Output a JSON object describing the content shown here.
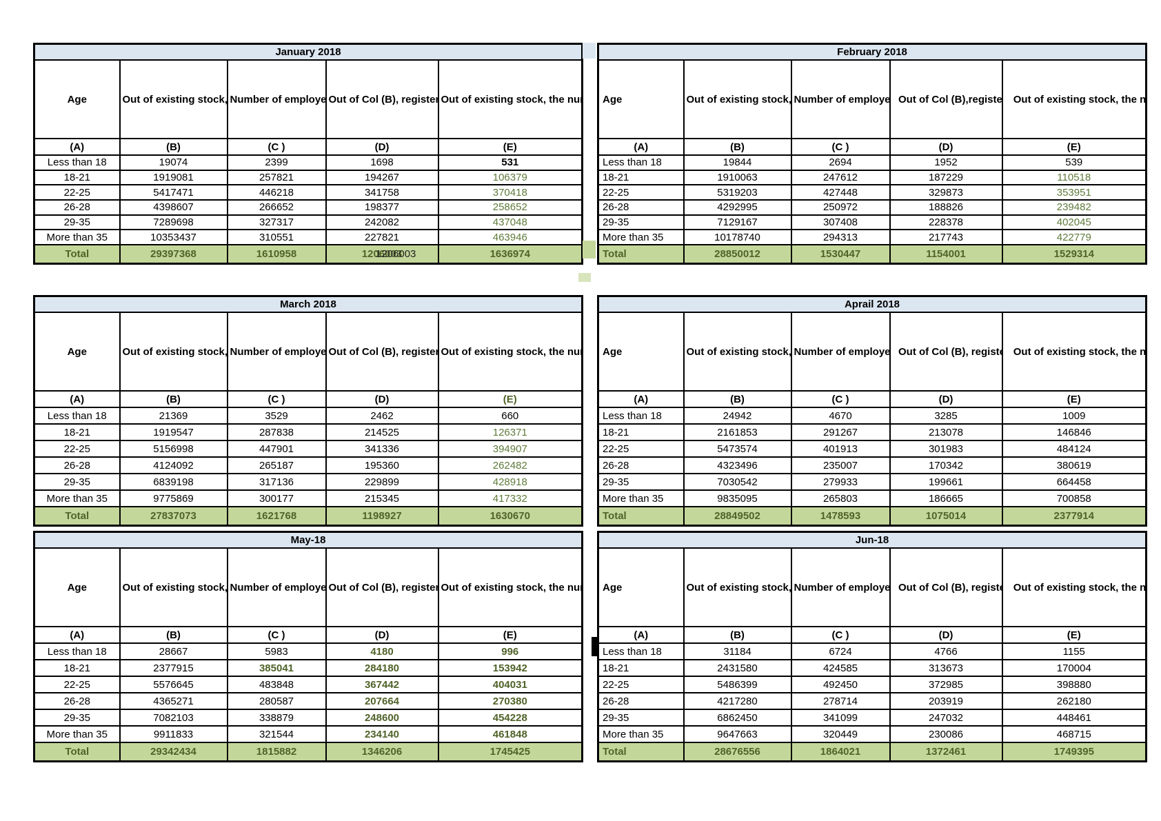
{
  "colors": {
    "title_bg": "#DCE6F1",
    "total_bg": "#C4D79B",
    "value_green": "#5E7A3A",
    "total_green": "#4F6228",
    "border": "#000000"
  },
  "column_letters": [
    "(A)",
    "(B)",
    "(C )",
    "(D)",
    "(E)"
  ],
  "months": [
    {
      "title": "January 2018",
      "headers": {
        "a": "Age",
        "b": "Out of existing stock, the number of employees who paid contribution during the month",
        "c": "Number of employees registered during the month",
        "d": "Out of Col (B), registerd employees as in Col ( C), who paid the contribution during the month",
        "e": "Out of existing stock, the number of  employees  who have ceased paying contribution during the month"
      },
      "e_letter_green": false,
      "rows": [
        {
          "age": "Less than 18",
          "b": "19074",
          "c": "2399",
          "d": "1698",
          "e": "531",
          "cls": {
            "e": "bb"
          }
        },
        {
          "age": "18-21",
          "b": "1919081",
          "c": "257821",
          "d": "194267",
          "e": "106379",
          "cls": {
            "e": "grn"
          }
        },
        {
          "age": "22-25",
          "b": "5417471",
          "c": "446218",
          "d": "341758",
          "e": "370418",
          "cls": {
            "e": "grn"
          }
        },
        {
          "age": "26-28",
          "b": "4398607",
          "c": "266652",
          "d": "198377",
          "e": "258652",
          "cls": {
            "e": "grn"
          }
        },
        {
          "age": "29-35",
          "b": "7289698",
          "c": "327317",
          "d": "242082",
          "e": "437048",
          "cls": {
            "e": "grn"
          }
        },
        {
          "age": "More than 35",
          "b": "10353437",
          "c": "310551",
          "d": "227821",
          "e": "463946",
          "cls": {
            "e": "grn"
          }
        }
      ],
      "total": {
        "label": "Total",
        "b": "29397368",
        "c": "1610958",
        "d": "1206003",
        "e": "1636974"
      },
      "overlay": "1206003"
    },
    {
      "title": "February 2018",
      "headers": {
        "a": "Age",
        "b": "Out of existing stock, the number of employees who paid contribution during the month",
        "c": "Number of employees registered during the month",
        "d": "Out of Col (B),registered employees as in Col ( C), who paid the contribution during the month",
        "e": "Out of existing stock, the number of employees who have ceased paying contribution during the month"
      },
      "e_letter_green": false,
      "rows": [
        {
          "age": "Less than 18",
          "b": "19844",
          "c": "2694",
          "d": "1952",
          "e": "539",
          "cls": {}
        },
        {
          "age": "18-21",
          "b": "1910063",
          "c": "247612",
          "d": "187229",
          "e": "110518",
          "cls": {
            "e": "grn"
          }
        },
        {
          "age": "22-25",
          "b": "5319203",
          "c": "427448",
          "d": "329873",
          "e": "353951",
          "cls": {
            "e": "grn"
          }
        },
        {
          "age": "26-28",
          "b": "4292995",
          "c": "250972",
          "d": "188826",
          "e": "239482",
          "cls": {
            "e": "grn"
          }
        },
        {
          "age": "29-35",
          "b": "7129167",
          "c": "307408",
          "d": "228378",
          "e": "402045",
          "cls": {
            "e": "grn"
          }
        },
        {
          "age": "More than 35",
          "b": "10178740",
          "c": "294313",
          "d": "217743",
          "e": "422779",
          "cls": {
            "e": "grn"
          }
        }
      ],
      "total": {
        "label": "Total",
        "b": "28850012",
        "c": "1530447",
        "d": "1154001",
        "e": "1529314"
      }
    },
    {
      "title": "March 2018",
      "headers": {
        "a": "Age",
        "b": "Out of existing stock, the number of employees who paid contribution during the month",
        "c": "Number of employees registered during the month",
        "d": "Out of Col (B), registerd employees as in Col ( C), who paid the contribution during the month",
        "e": "Out of existing stock, the number of  employees  who have ceased paying contribution during the month"
      },
      "e_letter_green": true,
      "rows": [
        {
          "age": "Less than 18",
          "b": "21369",
          "c": "3529",
          "d": "2462",
          "e": "660",
          "cls": {}
        },
        {
          "age": "18-21",
          "b": "1919547",
          "c": "287838",
          "d": "214525",
          "e": "126371",
          "cls": {
            "e": "grn"
          }
        },
        {
          "age": "22-25",
          "b": "5156998",
          "c": "447901",
          "d": "341336",
          "e": "394907",
          "cls": {
            "e": "grn"
          }
        },
        {
          "age": "26-28",
          "b": "4124092",
          "c": "265187",
          "d": "195360",
          "e": "262482",
          "cls": {
            "e": "grn"
          }
        },
        {
          "age": "29-35",
          "b": "6839198",
          "c": "317136",
          "d": "229899",
          "e": "428918",
          "cls": {
            "e": "grn"
          }
        },
        {
          "age": "More than 35",
          "b": "9775869",
          "c": "300177",
          "d": "215345",
          "e": "417332",
          "cls": {
            "e": "grn"
          }
        }
      ],
      "total": {
        "label": "Total",
        "b": "27837073",
        "c": "1621768",
        "d": "1198927",
        "e": "1630670"
      }
    },
    {
      "title": "Aprail 2018",
      "headers": {
        "a": "Age",
        "b": "Out of existing stock, the number of employees who paid contribution during the month",
        "c": "Number of employees registered during the month",
        "d": "Out of Col (B), registerd employees as in Col ( C), who paid the contribution during the month",
        "e": "Out of existing stock, the number of employees who have ceased paying contribution during the month"
      },
      "e_letter_green": false,
      "rows": [
        {
          "age": "Less than 18",
          "b": "24942",
          "c": "4670",
          "d": "3285",
          "e": "1009",
          "cls": {}
        },
        {
          "age": "18-21",
          "b": "2161853",
          "c": "291267",
          "d": "213078",
          "e": "146846",
          "cls": {}
        },
        {
          "age": "22-25",
          "b": "5473574",
          "c": "401913",
          "d": "301983",
          "e": "484124",
          "cls": {}
        },
        {
          "age": "26-28",
          "b": "4323496",
          "c": "235007",
          "d": "170342",
          "e": "380619",
          "cls": {}
        },
        {
          "age": "29-35",
          "b": "7030542",
          "c": "279933",
          "d": "199661",
          "e": "664458",
          "cls": {}
        },
        {
          "age": "More than 35",
          "b": "9835095",
          "c": "265803",
          "d": "186665",
          "e": "700858",
          "cls": {}
        }
      ],
      "total": {
        "label": "Total",
        "b": "28849502",
        "c": "1478593",
        "d": "1075014",
        "e": "2377914"
      }
    },
    {
      "title": "May-18",
      "headers": {
        "a": "Age",
        "b": "Out of existing stock, the number of employees who paid contribution during the month",
        "c": "Number of employees registered during the month",
        "d": "Out of Col (B), registerd employees as in Col ( C), who paid the contribution during the month",
        "e": "Out of existing stock, the number of  employees  who have ceased paying contribution during the month"
      },
      "e_letter_green": false,
      "rows": [
        {
          "age": "Less than 18",
          "b": "28667",
          "c": "5983",
          "d": "4180",
          "e": "996",
          "cls": {
            "d": "gb",
            "e": "gb"
          }
        },
        {
          "age": "18-21",
          "b": "2377915",
          "c": "385041",
          "d": "284180",
          "e": "153942",
          "cls": {
            "c": "gb",
            "d": "gb",
            "e": "gb"
          }
        },
        {
          "age": "22-25",
          "b": "5576645",
          "c": "483848",
          "d": "367442",
          "e": "404031",
          "cls": {
            "d": "gb",
            "e": "gb"
          }
        },
        {
          "age": "26-28",
          "b": "4365271",
          "c": "280587",
          "d": "207664",
          "e": "270380",
          "cls": {
            "d": "gb",
            "e": "gb"
          }
        },
        {
          "age": "29-35",
          "b": "7082103",
          "c": "338879",
          "d": "248600",
          "e": "454228",
          "cls": {
            "d": "gb",
            "e": "gb"
          }
        },
        {
          "age": "More than 35",
          "b": "9911833",
          "c": "321544",
          "d": "234140",
          "e": "461848",
          "cls": {
            "d": "gb",
            "e": "gb"
          }
        }
      ],
      "total": {
        "label": "Total",
        "b": "29342434",
        "c": "1815882",
        "d": "1346206",
        "e": "1745425"
      }
    },
    {
      "title": "Jun-18",
      "headers": {
        "a": "Age",
        "b": "Out of existing stock, the number of employees who paid contribution during the month",
        "c": "Number of employees registered during the month",
        "d": "Out of Col (B), registerd employees as in Col ( C), who paid the contribution during the month",
        "e": "Out of existing stock, the number of employees who have ceased paying contribution during the month"
      },
      "e_letter_green": false,
      "rows": [
        {
          "age": "Less than 18",
          "b": "31184",
          "c": "6724",
          "d": "4766",
          "e": "1155",
          "cls": {}
        },
        {
          "age": "18-21",
          "b": "2431580",
          "c": "424585",
          "d": "313673",
          "e": "170004",
          "cls": {}
        },
        {
          "age": "22-25",
          "b": "5486399",
          "c": "492450",
          "d": "372985",
          "e": "398880",
          "cls": {}
        },
        {
          "age": "26-28",
          "b": "4217280",
          "c": "278714",
          "d": "203919",
          "e": "262180",
          "cls": {}
        },
        {
          "age": "29-35",
          "b": "6862450",
          "c": "341099",
          "d": "247032",
          "e": "448461",
          "cls": {}
        },
        {
          "age": "More than 35",
          "b": "9647663",
          "c": "320449",
          "d": "230086",
          "e": "468715",
          "cls": {}
        }
      ],
      "total": {
        "label": "Total",
        "b": "28676556",
        "c": "1864021",
        "d": "1372461",
        "e": "1749395"
      }
    }
  ]
}
